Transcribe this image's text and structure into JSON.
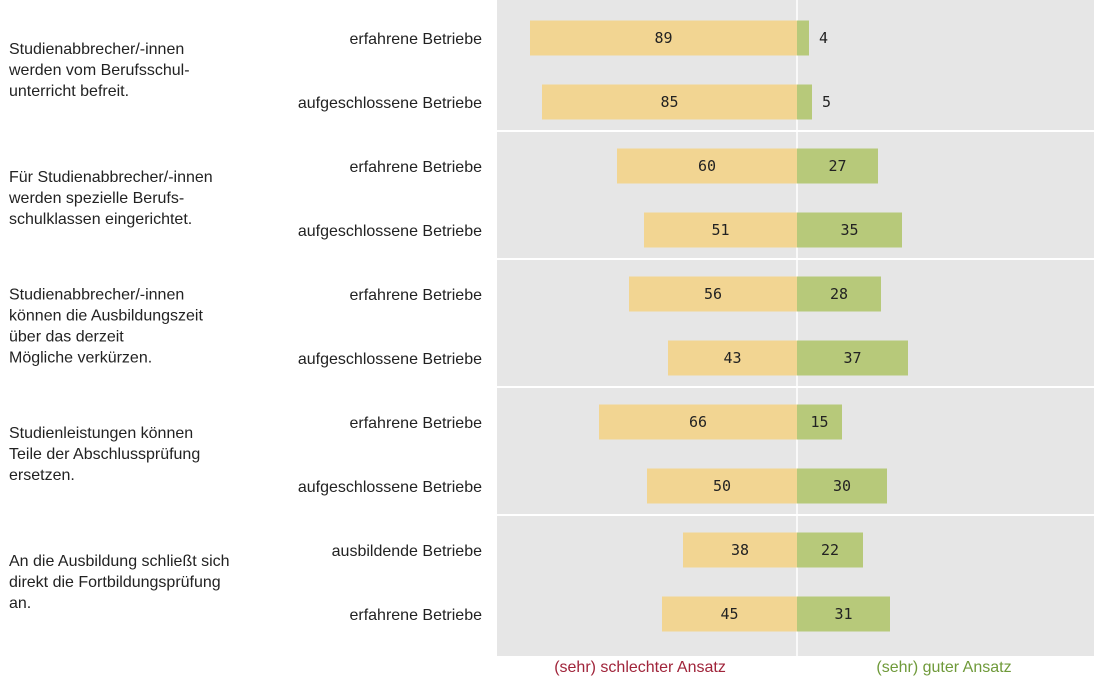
{
  "colors": {
    "panel": "#e6e6e6",
    "bad_bar": "#f2d592",
    "good_bar": "#b7c97a",
    "bad_text": "#a0243a",
    "good_text": "#6f9a3a"
  },
  "chart_data": {
    "type": "bar",
    "orientation": "horizontal-diverging",
    "legend": {
      "negative": "(sehr) schlechter Ansatz",
      "positive": "(sehr) guter Ansatz",
      "placement": "bottom"
    },
    "groups": [
      {
        "label_lines": [
          "Studienabbrecher/-innen",
          "werden vom Berufsschul-",
          "unterricht befreit."
        ],
        "rows": [
          {
            "label": "erfahrene Betriebe",
            "bad": 89,
            "good": 4
          },
          {
            "label": "aufgeschlossene Betriebe",
            "bad": 85,
            "good": 5
          }
        ]
      },
      {
        "label_lines": [
          "Für Studienabbrecher/-innen",
          "werden spezielle Berufs-",
          "schulklassen eingerichtet."
        ],
        "rows": [
          {
            "label": "erfahrene Betriebe",
            "bad": 60,
            "good": 27
          },
          {
            "label": "aufgeschlossene Betriebe",
            "bad": 51,
            "good": 35
          }
        ]
      },
      {
        "label_lines": [
          "Studienabbrecher/-innen",
          "können die Ausbildungszeit",
          "über das derzeit",
          "Mögliche verkürzen."
        ],
        "rows": [
          {
            "label": "erfahrene Betriebe",
            "bad": 56,
            "good": 28
          },
          {
            "label": "aufgeschlossene Betriebe",
            "bad": 43,
            "good": 37
          }
        ]
      },
      {
        "label_lines": [
          "Studienleistungen können",
          "Teile der Abschlussprüfung",
          "ersetzen."
        ],
        "rows": [
          {
            "label": "erfahrene Betriebe",
            "bad": 66,
            "good": 15
          },
          {
            "label": "aufgeschlossene Betriebe",
            "bad": 50,
            "good": 30
          }
        ]
      },
      {
        "label_lines": [
          "An die Ausbildung schließt sich",
          "direkt die Fortbildungsprüfung",
          "an."
        ],
        "rows": [
          {
            "label": "ausbildende Betriebe",
            "bad": 38,
            "good": 22
          },
          {
            "label": "erfahrene Betriebe",
            "bad": 45,
            "good": 31
          }
        ]
      }
    ]
  }
}
